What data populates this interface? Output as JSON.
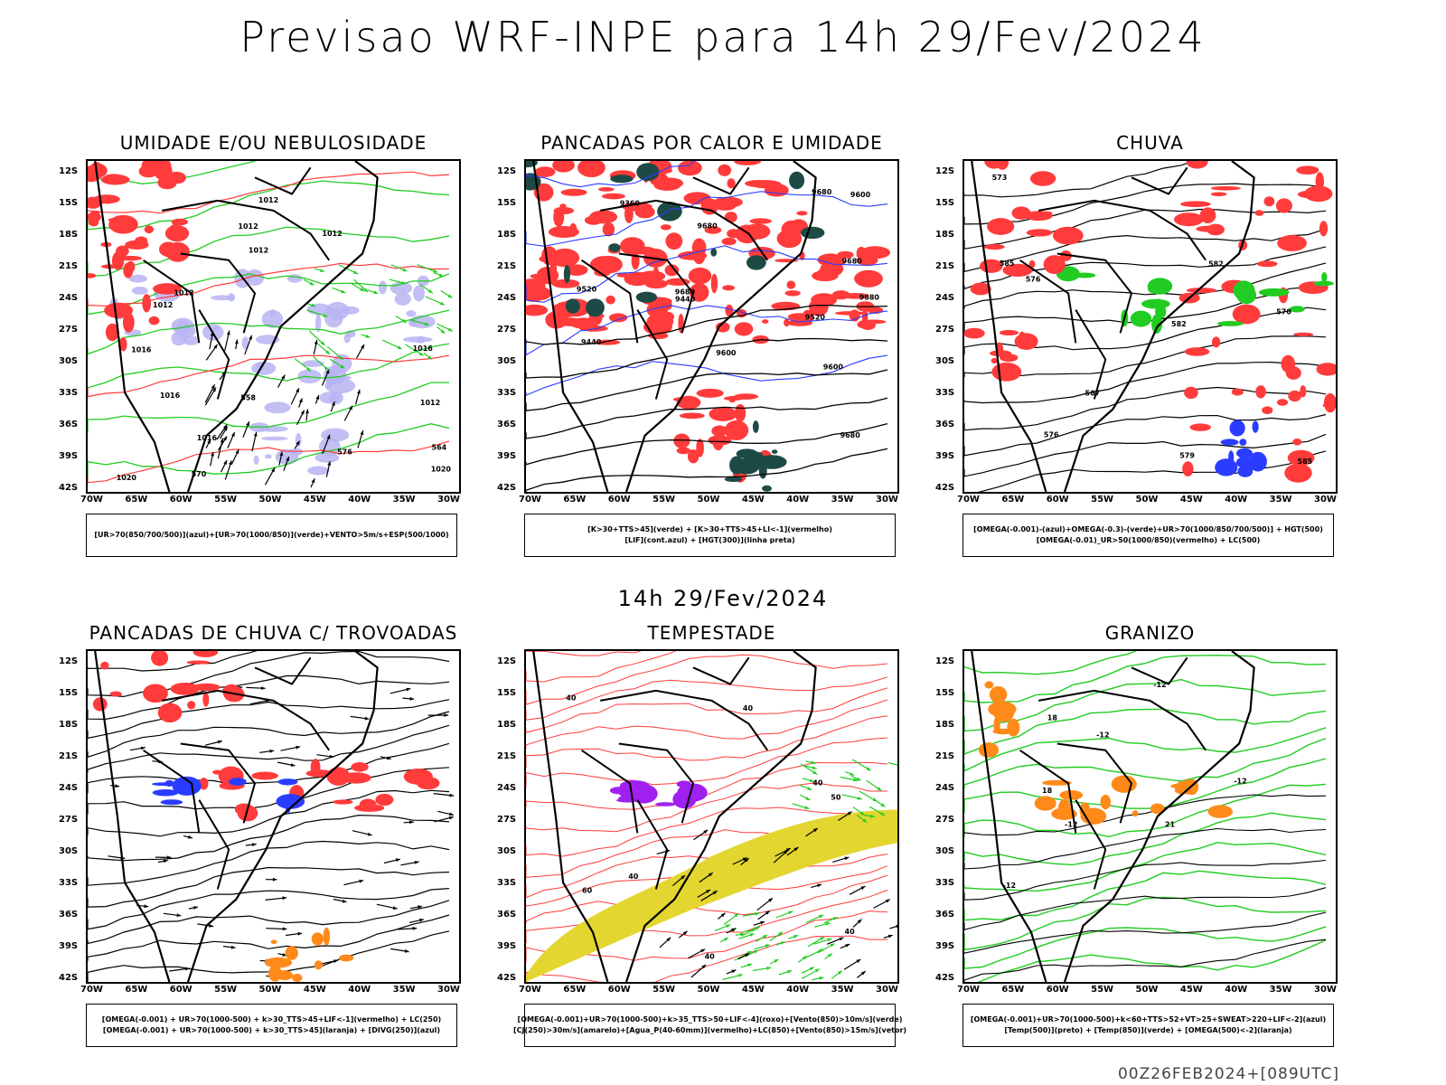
{
  "title": "Previsao WRF-INPE  para 14h 29/Fev/2024",
  "mid_title": "14h 29/Fev/2024",
  "footer": "00Z26FEB2024+[089UTC]",
  "lat_labels": [
    "12S",
    "15S",
    "18S",
    "21S",
    "24S",
    "27S",
    "30S",
    "33S",
    "36S",
    "39S",
    "42S"
  ],
  "lon_labels": [
    "70W",
    "65W",
    "60W",
    "55W",
    "50W",
    "45W",
    "40W",
    "35W",
    "30W"
  ],
  "panels": [
    {
      "title": "UMIDADE E/OU NEBULOSIDADE",
      "legend": [
        "[UR>70(850/700/500)](azul)+[UR>70(1000/850)](verde)+VENTO>5m/s+ESP(500/1000)"
      ],
      "contour_labels": [
        "1012",
        "1012",
        "1012",
        "1016",
        "1012",
        "1012",
        "1012",
        "1016",
        "1016",
        "1016",
        "1020",
        "1012",
        "1020",
        "576",
        "570",
        "564",
        "558"
      ]
    },
    {
      "title": "PANCADAS POR CALOR E UMIDADE",
      "legend": [
        "[K>30+TTS>45](verde) + [K>30+TTS>45+LI<-1](vermelho)",
        "[LIF](cont.azul) + [HGT(300)](linha preta)"
      ],
      "contour_labels": [
        "9680",
        "9680",
        "9680",
        "9680",
        "9680",
        "9600",
        "9600",
        "9520",
        "9440",
        "9440",
        "9360",
        "9680",
        "9600",
        "9520"
      ]
    },
    {
      "title": "CHUVA",
      "legend": [
        "[OMEGA(-0.001)-(azul)+OMEGA(-0.3)-(verde)+UR>70(1000/850/700/500)] + HGT(500)",
        "[OMEGA(-0.01)_UR>50(1000/850)(vermelho) + LC(500)"
      ],
      "contour_labels": [
        "585",
        "585",
        "582",
        "579",
        "576",
        "573",
        "570",
        "567",
        "582",
        "576"
      ]
    },
    {
      "title": "PANCADAS DE CHUVA C/ TROVOADAS",
      "legend": [
        "[OMEGA(-0.001) + UR>70(1000-500) + k>30_TTS>45+LIF<-1](vermelho) + LC(250)",
        "[OMEGA(-0.001) + UR>70(1000-500) + k>30_TTS>45](laranja) + [DIVG(250)](azul)"
      ],
      "contour_labels": []
    },
    {
      "title": "TEMPESTADE",
      "legend": [
        "[OMEGA(-0.001)+UR>70(1000-500)+k>35_TTS>50+LIF<-4](roxo)+[Vento(850)>10m/s](verde)",
        "[CJ(250)>30m/s](amarelo)+[Agua_P(40-60mm)](vermelho)+LC(850)+[Vento(850)>15m/s](vetor)"
      ],
      "contour_labels": [
        "40",
        "40",
        "60",
        "40",
        "50",
        "40",
        "40",
        "40"
      ]
    },
    {
      "title": "GRANIZO",
      "legend": [
        "[OMEGA(-0.001)+UR>70(1000-500)+k<60+TTS>52+VT>25+SWEAT>220+LIF<-2](azul)",
        "[Temp(500)](preto) + [Temp(850)](verde) + [OMEGA(500)<-2](laranja)"
      ],
      "contour_labels": [
        "-12",
        "-12",
        "-12",
        "-12",
        "-12",
        "21",
        "18",
        "18"
      ]
    }
  ],
  "colors": {
    "red": "#ff3b3b",
    "green": "#22cc22",
    "blue": "#2a3cff",
    "lightblue": "#b7b4f2",
    "yellow": "#e3d630",
    "darkteal": "#1e4a45",
    "orange": "#ff8a1a",
    "purple": "#a020f0",
    "black": "#000000"
  }
}
